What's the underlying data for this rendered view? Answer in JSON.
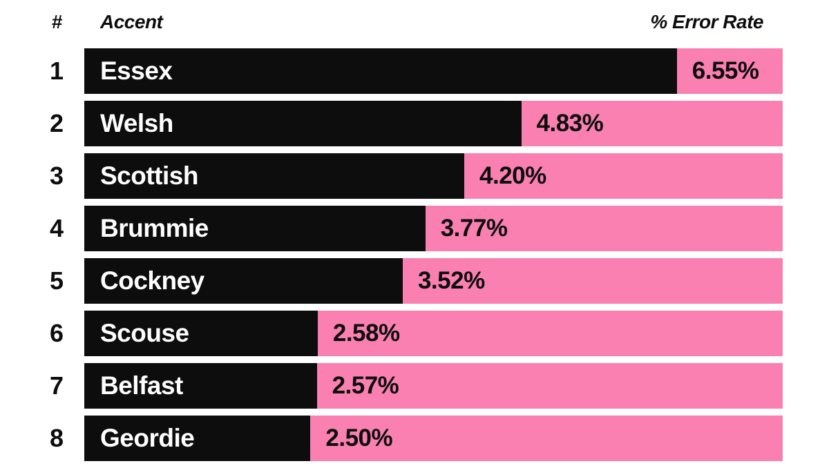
{
  "header": {
    "rank": "#",
    "accent": "Accent",
    "error_rate": "% Error Rate"
  },
  "chart_data": {
    "type": "bar",
    "orientation": "horizontal",
    "title": "",
    "columns": [
      "#",
      "Accent",
      "% Error Rate"
    ],
    "ranks": [
      "1",
      "2",
      "3",
      "4",
      "5",
      "6",
      "7",
      "8"
    ],
    "categories": [
      "Essex",
      "Welsh",
      "Scottish",
      "Brummie",
      "Cockney",
      "Scouse",
      "Belfast",
      "Geordie"
    ],
    "values": [
      6.55,
      4.83,
      4.2,
      3.77,
      3.52,
      2.58,
      2.57,
      2.5
    ],
    "value_labels": [
      "6.55%",
      "4.83%",
      "4.20%",
      "3.77%",
      "3.52%",
      "2.58%",
      "2.57%",
      "2.50%"
    ],
    "xlabel": "% Error Rate",
    "ylabel": "Accent",
    "axis_max": 7.72,
    "grid": false,
    "legend": "none",
    "colors": {
      "bar_fill": "#0d0d0d",
      "bar_track": "#f980b0",
      "accent_text": "#ffffff",
      "value_text": "#0d0d0d",
      "header_text": "#0d0d0d",
      "background": "#ffffff"
    }
  }
}
